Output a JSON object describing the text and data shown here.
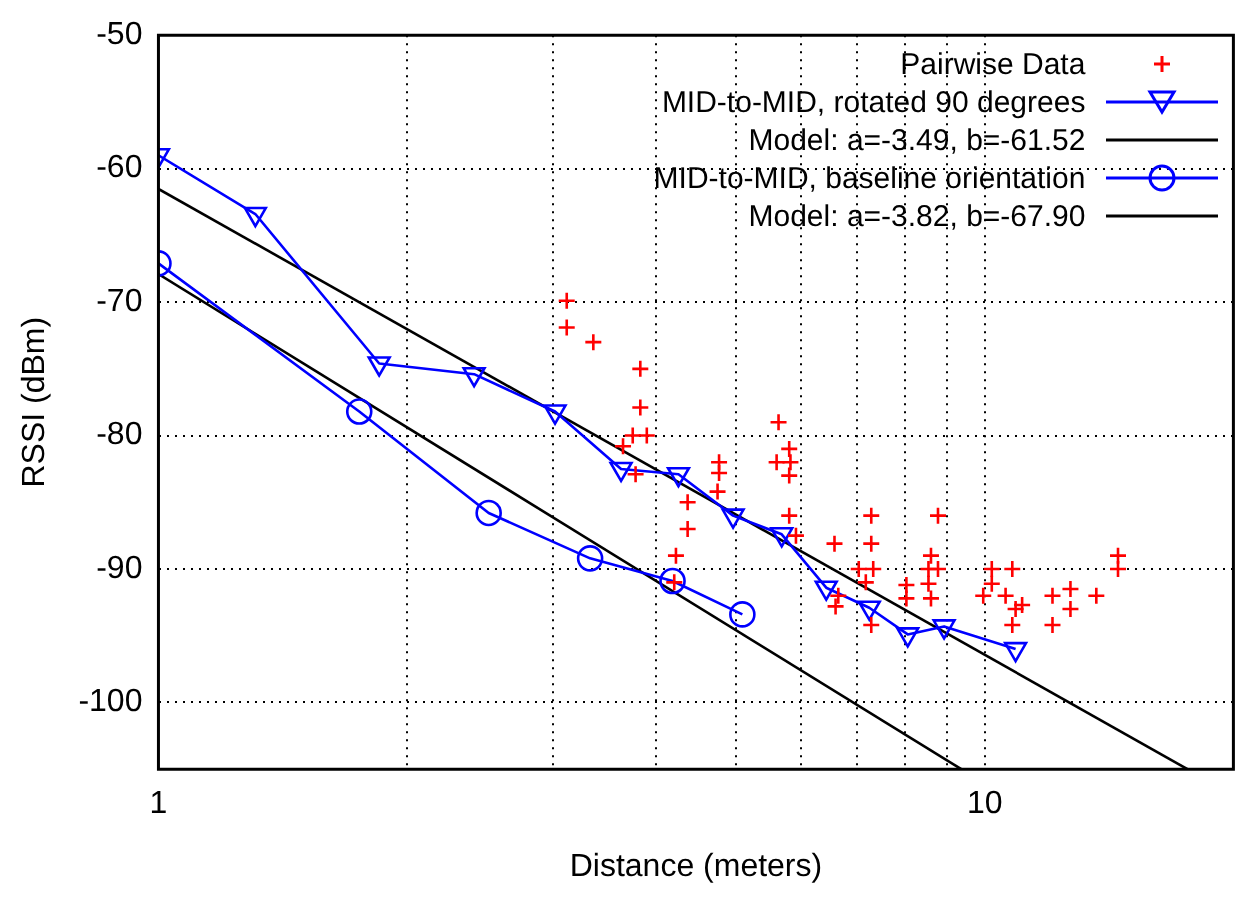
{
  "chart_data": {
    "type": "line",
    "xlabel": "Distance (meters)",
    "ylabel": "RSSI (dBm)",
    "log": "x",
    "xlim": [
      1,
      20
    ],
    "xticks": [
      1,
      {
        "value": 2,
        "label": null
      },
      {
        "value": 3,
        "label": null
      },
      {
        "value": 4,
        "label": null
      },
      {
        "value": 5,
        "label": null
      },
      {
        "value": 6,
        "label": null
      },
      {
        "value": 7,
        "label": null
      },
      {
        "value": 8,
        "label": null
      },
      {
        "value": 9,
        "label": null
      },
      10
    ],
    "ylim": [
      -105,
      -50
    ],
    "yticks": [
      -100,
      -90,
      -80,
      -70,
      -60,
      -50
    ],
    "grid": true,
    "legend": "top right",
    "series": [
      {
        "name": "Pairwise Data",
        "type": "scatter",
        "marker": "cross",
        "color": "#ff0000",
        "x": [
          3.12,
          3.12,
          3.36,
          3.83,
          3.83,
          3.75,
          3.9,
          3.65,
          3.78,
          4.37,
          4.37,
          4.23,
          4.21,
          4.77,
          4.77,
          4.75,
          5.63,
          5.8,
          5.6,
          5.82,
          5.8,
          5.8,
          5.91,
          6.58,
          6.65,
          6.6,
          7.29,
          7.29,
          7.04,
          7.33,
          7.18,
          7.29,
          8.04,
          8.04,
          8.61,
          8.55,
          8.78,
          8.78,
          8.55,
          8.61,
          9.96,
          10.2,
          10.2,
          10.8,
          10.6,
          10.9,
          11.1,
          10.8,
          12.08,
          12.08,
          12.7,
          12.7,
          13.65,
          14.5,
          14.5
        ],
        "values": [
          -69.9,
          -71.9,
          -73,
          -75,
          -77.9,
          -80,
          -80,
          -80.8,
          -82.9,
          -85,
          -87,
          -89,
          -91,
          -82,
          -82.8,
          -84.2,
          -79,
          -81,
          -82,
          -82,
          -83,
          -86,
          -87.5,
          -88.1,
          -92,
          -92.8,
          -86,
          -88.1,
          -90,
          -90,
          -91,
          -94.2,
          -91.2,
          -92.2,
          -89,
          -90,
          -86,
          -90,
          -91.1,
          -92.2,
          -92,
          -90,
          -91.1,
          -90,
          -92,
          -93,
          -92.7,
          -94.2,
          -92,
          -94.2,
          -91.5,
          -93,
          -92,
          -89,
          -90
        ]
      },
      {
        "name": "MID-to-MID, rotated 90 degrees",
        "marker": "triangle",
        "color": "#0000ff",
        "x": [
          1,
          1.31,
          1.85,
          2.41,
          3.02,
          3.63,
          4.26,
          4.96,
          5.68,
          6.43,
          7.25,
          8.07,
          8.93,
          10.9
        ],
        "values": [
          -59,
          -63.4,
          -74.6,
          -75.4,
          -78.2,
          -82.5,
          -82.9,
          -86,
          -87.4,
          -91.4,
          -92.9,
          -94.9,
          -94.3,
          -96
        ]
      },
      {
        "name": "Model: a=-3.49, b=-61.52",
        "marker": "none",
        "color": "#000000",
        "x": [
          1,
          17.6
        ],
        "values": [
          -61.52,
          -105
        ]
      },
      {
        "name": "MID-to-MID, baseline orientation",
        "marker": "circle",
        "color": "#0000ff",
        "x": [
          1,
          1.75,
          2.51,
          3.33,
          4.19,
          5.09
        ],
        "values": [
          -67.1,
          -78.2,
          -85.8,
          -89.2,
          -90.9,
          -93.4
        ]
      },
      {
        "name": "Model: a=-3.82, b=-67.90",
        "marker": "none",
        "color": "#000000",
        "x": [
          1,
          9.37
        ],
        "values": [
          -67.9,
          -105
        ]
      }
    ]
  }
}
